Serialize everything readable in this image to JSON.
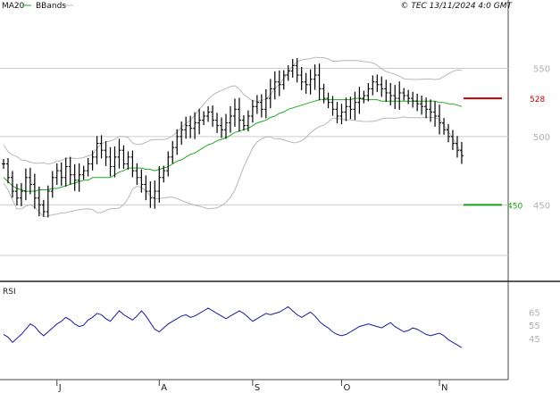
{
  "header": {
    "legend_ma": "MA20",
    "legend_bb": "BBands",
    "copyright": "© TEC 13/11/2024 4:0 GMT"
  },
  "colors": {
    "price": "#000000",
    "ma": "#22aa22",
    "bbands": "#b8b8b8",
    "rsi": "#1a1aa0",
    "resistance": "#c00000",
    "support": "#18a018",
    "grid": "#cccccc",
    "tick": "#b0b0b0"
  },
  "chart_data": [
    {
      "type": "ohlc",
      "y_ticks": [
        450,
        500,
        550
      ],
      "ylim": [
        394,
        600
      ],
      "levels": [
        {
          "label": "528",
          "value": 528,
          "color": "#c00000"
        },
        {
          "label": "450",
          "value": 450,
          "color": "#18a018"
        }
      ],
      "x_ticks": [
        {
          "label": "J",
          "index": 12
        },
        {
          "label": "A",
          "index": 35
        },
        {
          "label": "S",
          "index": 56
        },
        {
          "label": "O",
          "index": 76
        },
        {
          "label": "N",
          "index": 98
        }
      ],
      "n_bars": 104,
      "close": [
        480,
        470,
        460,
        455,
        460,
        470,
        465,
        455,
        450,
        445,
        460,
        470,
        475,
        470,
        478,
        472,
        468,
        472,
        475,
        480,
        485,
        495,
        490,
        485,
        478,
        485,
        490,
        480,
        485,
        475,
        470,
        465,
        460,
        455,
        460,
        470,
        475,
        485,
        492,
        500,
        505,
        508,
        506,
        510,
        512,
        515,
        518,
        512,
        508,
        505,
        510,
        515,
        520,
        512,
        508,
        515,
        522,
        525,
        520,
        528,
        535,
        540,
        538,
        545,
        548,
        552,
        545,
        540,
        538,
        542,
        545,
        535,
        528,
        525,
        520,
        515,
        518,
        522,
        520,
        525,
        528,
        530,
        535,
        540,
        538,
        535,
        532,
        530,
        528,
        532,
        530,
        528,
        526,
        524,
        522,
        520,
        518,
        515,
        510,
        505,
        500,
        495,
        490,
        486
      ],
      "series": [
        {
          "name": "MA20",
          "values": [
            470,
            467,
            464,
            462,
            461,
            460,
            460,
            460,
            461,
            461,
            461,
            462,
            462,
            463,
            464,
            465,
            466,
            467,
            468,
            468,
            470,
            470,
            470,
            470,
            470,
            472,
            474,
            475,
            477,
            477,
            477,
            477,
            476,
            476,
            475,
            476,
            477,
            478,
            480,
            482,
            483,
            485,
            487,
            488,
            490,
            492,
            494,
            495,
            497,
            498,
            499,
            501,
            503,
            504,
            505,
            506,
            508,
            510,
            511,
            512,
            514,
            515,
            517,
            518,
            520,
            521,
            522,
            523,
            524,
            525,
            526,
            527,
            527,
            527,
            527,
            527,
            527,
            527,
            527,
            528,
            528,
            527,
            527,
            527,
            527,
            526,
            526,
            526,
            526,
            526,
            526,
            526,
            526,
            526,
            526,
            526,
            526,
            526,
            525,
            525,
            524,
            524,
            523,
            522
          ]
        }
      ]
    },
    {
      "type": "line",
      "title": "RSI",
      "y_ticks": [
        45,
        55,
        65
      ],
      "ylim": [
        15,
        85
      ],
      "values": [
        48,
        46,
        42,
        45,
        48,
        52,
        56,
        54,
        50,
        47,
        50,
        53,
        56,
        58,
        61,
        59,
        56,
        54,
        55,
        59,
        61,
        64,
        63,
        60,
        58,
        62,
        66,
        63,
        61,
        59,
        62,
        66,
        62,
        57,
        52,
        50,
        53,
        56,
        58,
        60,
        62,
        63,
        61,
        62,
        64,
        66,
        68,
        66,
        64,
        62,
        60,
        62,
        64,
        66,
        64,
        61,
        58,
        60,
        62,
        64,
        63,
        64,
        65,
        67,
        69,
        66,
        63,
        61,
        63,
        65,
        62,
        58,
        55,
        53,
        50,
        48,
        47,
        48,
        50,
        52,
        54,
        55,
        56,
        55,
        54,
        53,
        55,
        57,
        54,
        52,
        50,
        51,
        53,
        52,
        50,
        48,
        47,
        48,
        49,
        47,
        44,
        42,
        40,
        38
      ]
    }
  ]
}
